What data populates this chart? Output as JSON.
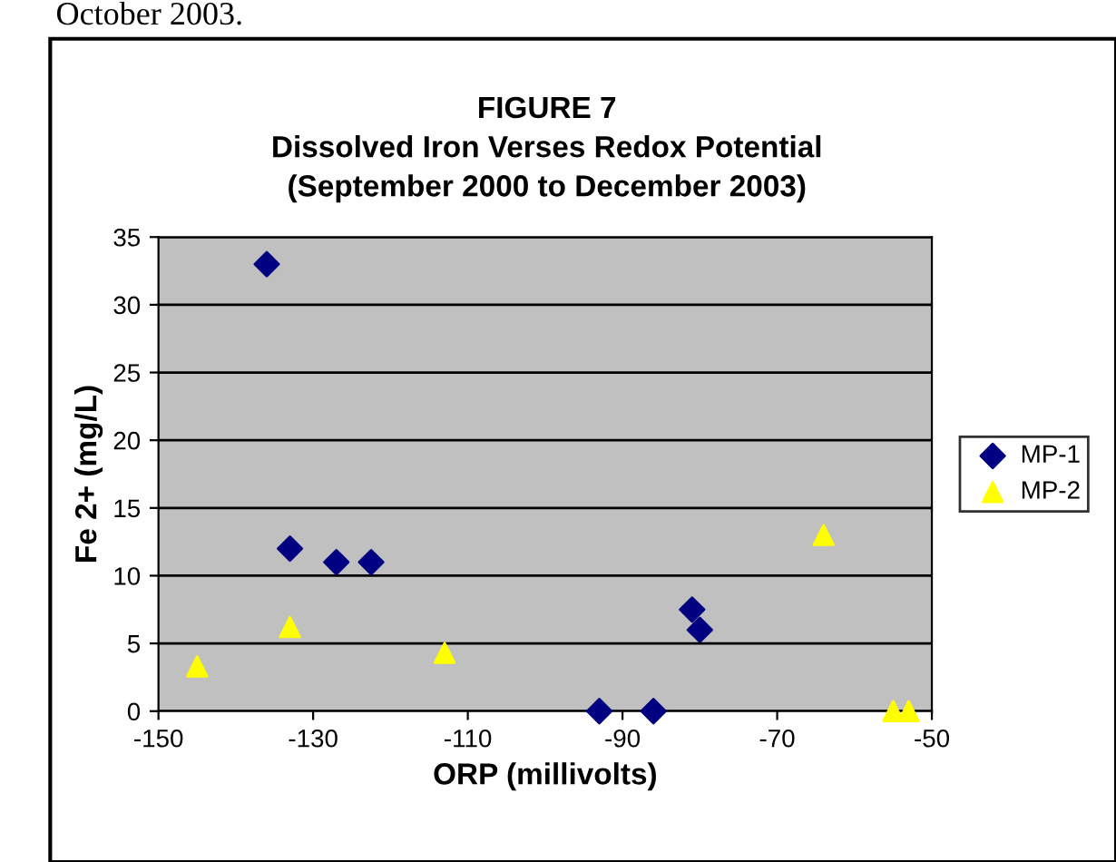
{
  "chart_data": {
    "type": "scatter",
    "title": "FIGURE 7\nDissolved Iron Verses Redox Potential\n(September 2000 to December 2003)",
    "xlabel": "ORP (millivolts)",
    "ylabel": "Fe 2+ (mg/L)",
    "annotations": [
      "October 2003."
    ],
    "series": [
      {
        "name": "MP-1",
        "color": "#000080",
        "marker": "diamond",
        "x": [
          -136,
          -133,
          -127,
          -122.5,
          -93,
          -86,
          -81,
          -80
        ],
        "values": [
          33,
          12,
          11,
          11,
          0,
          0,
          7.5,
          6
        ]
      },
      {
        "name": "MP-2",
        "color": "#ffff00",
        "marker": "triangle",
        "x": [
          -145,
          -133,
          -113,
          -64,
          -55,
          -53
        ],
        "values": [
          3.3,
          6.2,
          4.3,
          13,
          0,
          0
        ]
      }
    ],
    "xlim": [
      -150,
      -50
    ],
    "xticks": [
      -150,
      -130,
      -110,
      -90,
      -70,
      -50
    ],
    "ylim": [
      0,
      35
    ],
    "yticks": [
      0,
      5,
      10,
      15,
      20,
      25,
      30,
      35
    ],
    "grid": "y",
    "legend": "right"
  }
}
